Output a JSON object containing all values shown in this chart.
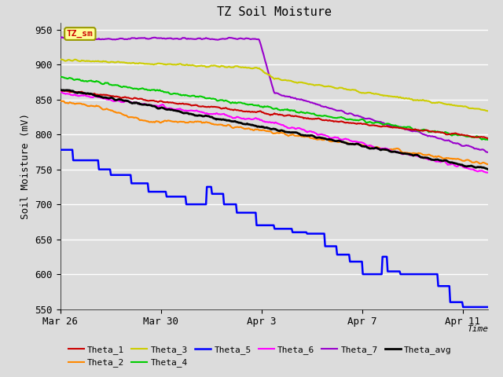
{
  "title": "TZ Soil Moisture",
  "ylabel": "Soil Moisture (mV)",
  "xlabel": "Time",
  "ylim": [
    550,
    960
  ],
  "yticks": [
    550,
    600,
    650,
    700,
    750,
    800,
    850,
    900,
    950
  ],
  "legend_label": "TZ_sm",
  "series_colors": {
    "Theta_1": "#cc0000",
    "Theta_2": "#ff8800",
    "Theta_3": "#cccc00",
    "Theta_4": "#00cc00",
    "Theta_5": "#0000ff",
    "Theta_6": "#ff00ff",
    "Theta_7": "#9900cc",
    "Theta_avg": "#000000"
  },
  "date_ticks": [
    "Mar 26",
    "Mar 30",
    "Apr 3",
    "Apr 7",
    "Apr 11"
  ],
  "date_tick_positions": [
    0,
    4,
    8,
    12,
    16
  ],
  "xlim": [
    0,
    17.0
  ]
}
